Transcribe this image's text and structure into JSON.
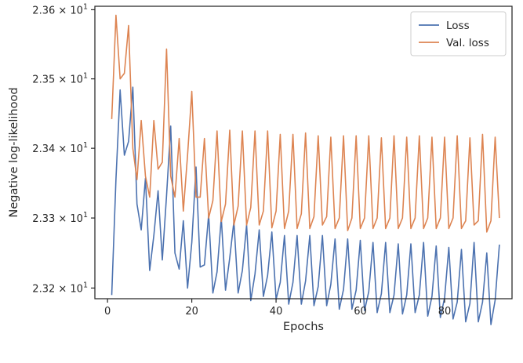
{
  "chart_data": {
    "type": "line",
    "xlabel": "Epochs",
    "ylabel": "Negative log-likelihood",
    "xlim": [
      -3,
      96
    ],
    "ylim": [
      23.1848,
      23.605
    ],
    "yscale": "log",
    "grid": false,
    "legend_position": "top-right",
    "x_ticks": [
      0,
      20,
      40,
      60,
      80
    ],
    "x_tick_labels": [
      "0",
      "20",
      "40",
      "60",
      "80"
    ],
    "y_ticks": [
      23.2,
      23.3,
      23.4,
      23.5,
      23.6
    ],
    "y_tick_labels": [
      {
        "base": "2.32",
        "times": "×",
        "power_base": "10",
        "exponent": "1"
      },
      {
        "base": "2.33",
        "times": "×",
        "power_base": "10",
        "exponent": "1"
      },
      {
        "base": "2.34",
        "times": "×",
        "power_base": "10",
        "exponent": "1"
      },
      {
        "base": "2.35",
        "times": "×",
        "power_base": "10",
        "exponent": "1"
      },
      {
        "base": "2.36",
        "times": "×",
        "power_base": "10",
        "exponent": "1"
      }
    ],
    "x": [
      1,
      2,
      3,
      4,
      5,
      6,
      7,
      8,
      9,
      10,
      11,
      12,
      13,
      14,
      15,
      16,
      17,
      18,
      19,
      20,
      21,
      22,
      23,
      24,
      25,
      26,
      27,
      28,
      29,
      30,
      31,
      32,
      33,
      34,
      35,
      36,
      37,
      38,
      39,
      40,
      41,
      42,
      43,
      44,
      45,
      46,
      47,
      48,
      49,
      50,
      51,
      52,
      53,
      54,
      55,
      56,
      57,
      58,
      59,
      60,
      61,
      62,
      63,
      64,
      65,
      66,
      67,
      68,
      69,
      70,
      71,
      72,
      73,
      74,
      75,
      76,
      77,
      78,
      79,
      80,
      81,
      82,
      83,
      84,
      85,
      86,
      87,
      88,
      89,
      90,
      91,
      92,
      93
    ],
    "series": [
      {
        "name": "Loss",
        "color": "#4c72b0",
        "values": [
          23.19,
          23.356,
          23.484,
          23.39,
          23.41,
          23.488,
          23.32,
          23.283,
          23.357,
          23.225,
          23.275,
          23.339,
          23.24,
          23.332,
          23.432,
          23.25,
          23.227,
          23.296,
          23.2,
          23.265,
          23.373,
          23.23,
          23.233,
          23.305,
          23.193,
          23.223,
          23.3,
          23.197,
          23.243,
          23.295,
          23.193,
          23.225,
          23.29,
          23.182,
          23.22,
          23.283,
          23.188,
          23.218,
          23.28,
          23.184,
          23.208,
          23.275,
          23.177,
          23.208,
          23.275,
          23.177,
          23.21,
          23.275,
          23.175,
          23.202,
          23.275,
          23.175,
          23.205,
          23.27,
          23.17,
          23.198,
          23.27,
          23.17,
          23.197,
          23.268,
          23.168,
          23.195,
          23.265,
          23.165,
          23.192,
          23.265,
          23.165,
          23.19,
          23.263,
          23.163,
          23.19,
          23.263,
          23.165,
          23.19,
          23.265,
          23.16,
          23.188,
          23.26,
          23.158,
          23.186,
          23.258,
          23.156,
          23.18,
          23.255,
          23.152,
          23.178,
          23.265,
          23.152,
          23.18,
          23.25,
          23.148,
          23.183,
          23.262
        ]
      },
      {
        "name": "Val. loss",
        "color": "#dd8452",
        "values": [
          23.442,
          23.592,
          23.5,
          23.508,
          23.577,
          23.4,
          23.355,
          23.44,
          23.36,
          23.33,
          23.44,
          23.37,
          23.38,
          23.543,
          23.36,
          23.33,
          23.414,
          23.31,
          23.39,
          23.482,
          23.33,
          23.33,
          23.414,
          23.3,
          23.325,
          23.425,
          23.295,
          23.32,
          23.426,
          23.29,
          23.317,
          23.425,
          23.29,
          23.315,
          23.425,
          23.29,
          23.31,
          23.425,
          23.286,
          23.31,
          23.42,
          23.285,
          23.31,
          23.42,
          23.285,
          23.306,
          23.422,
          23.285,
          23.302,
          23.418,
          23.29,
          23.302,
          23.416,
          23.285,
          23.3,
          23.418,
          23.282,
          23.3,
          23.418,
          23.285,
          23.3,
          23.418,
          23.285,
          23.3,
          23.415,
          23.285,
          23.3,
          23.418,
          23.285,
          23.3,
          23.416,
          23.285,
          23.3,
          23.418,
          23.285,
          23.3,
          23.416,
          23.285,
          23.3,
          23.416,
          23.285,
          23.3,
          23.418,
          23.285,
          23.296,
          23.415,
          23.29,
          23.296,
          23.42,
          23.28,
          23.296,
          23.416,
          23.3
        ]
      }
    ]
  }
}
